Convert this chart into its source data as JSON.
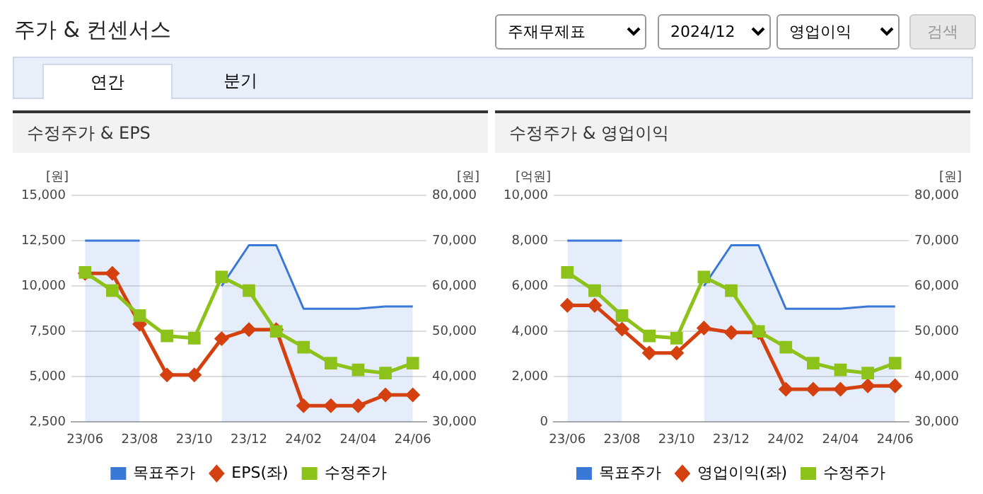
{
  "chart_data": [
    {
      "type": "other",
      "title": "주가 & 컨센서스",
      "annotations": [
        "주재무제표",
        "2024/12",
        "영업이익",
        "검색",
        "연간",
        "분기"
      ]
    },
    {
      "type": "line",
      "title": "수정주가 & EPS",
      "ylabel": "[원]",
      "y2label": "[원]",
      "categories": [
        "23/06",
        null,
        "23/08",
        null,
        "23/10",
        null,
        "23/12",
        null,
        "24/02",
        null,
        "24/04",
        null,
        "24/06"
      ],
      "series": [
        {
          "name": "목표주가",
          "type": "area",
          "axis": "y2",
          "color": "#3a78d8",
          "marker": "none",
          "values": [
            70000,
            70000,
            70000,
            null,
            null,
            60000,
            69000,
            69000,
            55000,
            55000,
            55000,
            55500,
            55500
          ]
        },
        {
          "name": "EPS(좌)",
          "type": "line",
          "color": "#d4400f",
          "marker": "diamond",
          "values": [
            10700,
            10700,
            7900,
            5100,
            5100,
            7100,
            7600,
            7600,
            3400,
            3400,
            3400,
            4000,
            4000
          ]
        },
        {
          "name": "수정주가",
          "type": "line",
          "axis": "y2",
          "color": "#8cc21a",
          "marker": "square",
          "values": [
            63000,
            59000,
            53500,
            49000,
            48500,
            62000,
            59000,
            50000,
            46500,
            43000,
            41500,
            40800,
            43000
          ]
        }
      ],
      "ylim": [
        2500,
        15000
      ],
      "yticks": [
        {
          "value": 2500,
          "label": "2,500"
        },
        {
          "value": 5000,
          "label": "5,000"
        },
        {
          "value": 7500,
          "label": "7,500"
        },
        {
          "value": 10000,
          "label": "10,000"
        },
        {
          "value": 12500,
          "label": "12,500"
        },
        {
          "value": 15000,
          "label": "15,000"
        }
      ],
      "y2lim": [
        30000,
        80000
      ],
      "y2ticks": [
        {
          "value": 30000,
          "label": "30,000"
        },
        {
          "value": 40000,
          "label": "40,000"
        },
        {
          "value": 50000,
          "label": "50,000"
        },
        {
          "value": 60000,
          "label": "60,000"
        },
        {
          "value": 70000,
          "label": "70,000"
        },
        {
          "value": 80000,
          "label": "80,000"
        }
      ],
      "grid": "y",
      "legend": "bottom"
    },
    {
      "type": "line",
      "title": "수정주가 & 영업이익",
      "ylabel": "[억원]",
      "y2label": "[원]",
      "categories": [
        "23/06",
        null,
        "23/08",
        null,
        "23/10",
        null,
        "23/12",
        null,
        "24/02",
        null,
        "24/04",
        null,
        "24/06"
      ],
      "series": [
        {
          "name": "목표주가",
          "type": "area",
          "axis": "y2",
          "color": "#3a78d8",
          "marker": "none",
          "values": [
            70000,
            70000,
            70000,
            null,
            null,
            60000,
            69000,
            69000,
            55000,
            55000,
            55000,
            55500,
            55500
          ]
        },
        {
          "name": "영업이익(좌)",
          "type": "line",
          "color": "#d4400f",
          "marker": "diamond",
          "values": [
            5150,
            5150,
            4100,
            3050,
            3050,
            4150,
            3950,
            3950,
            1450,
            1450,
            1450,
            1600,
            1600
          ]
        },
        {
          "name": "수정주가",
          "type": "line",
          "axis": "y2",
          "color": "#8cc21a",
          "marker": "square",
          "values": [
            63000,
            59000,
            53500,
            49000,
            48500,
            62000,
            59000,
            50000,
            46500,
            43000,
            41500,
            40800,
            43000
          ]
        }
      ],
      "ylim": [
        0,
        10000
      ],
      "yticks": [
        0,
        {
          "value": 2000,
          "label": "2,000"
        },
        {
          "value": 4000,
          "label": "4,000"
        },
        {
          "value": 6000,
          "label": "6,000"
        },
        {
          "value": 8000,
          "label": "8,000"
        },
        {
          "value": 10000,
          "label": "10,000"
        }
      ],
      "y2lim": [
        30000,
        80000
      ],
      "y2ticks": [
        {
          "value": 30000,
          "label": "30,000"
        },
        {
          "value": 40000,
          "label": "40,000"
        },
        {
          "value": 50000,
          "label": "50,000"
        },
        {
          "value": 60000,
          "label": "60,000"
        },
        {
          "value": 70000,
          "label": "70,000"
        },
        {
          "value": 80000,
          "label": "80,000"
        }
      ],
      "grid": "y",
      "legend": "bottom"
    }
  ]
}
